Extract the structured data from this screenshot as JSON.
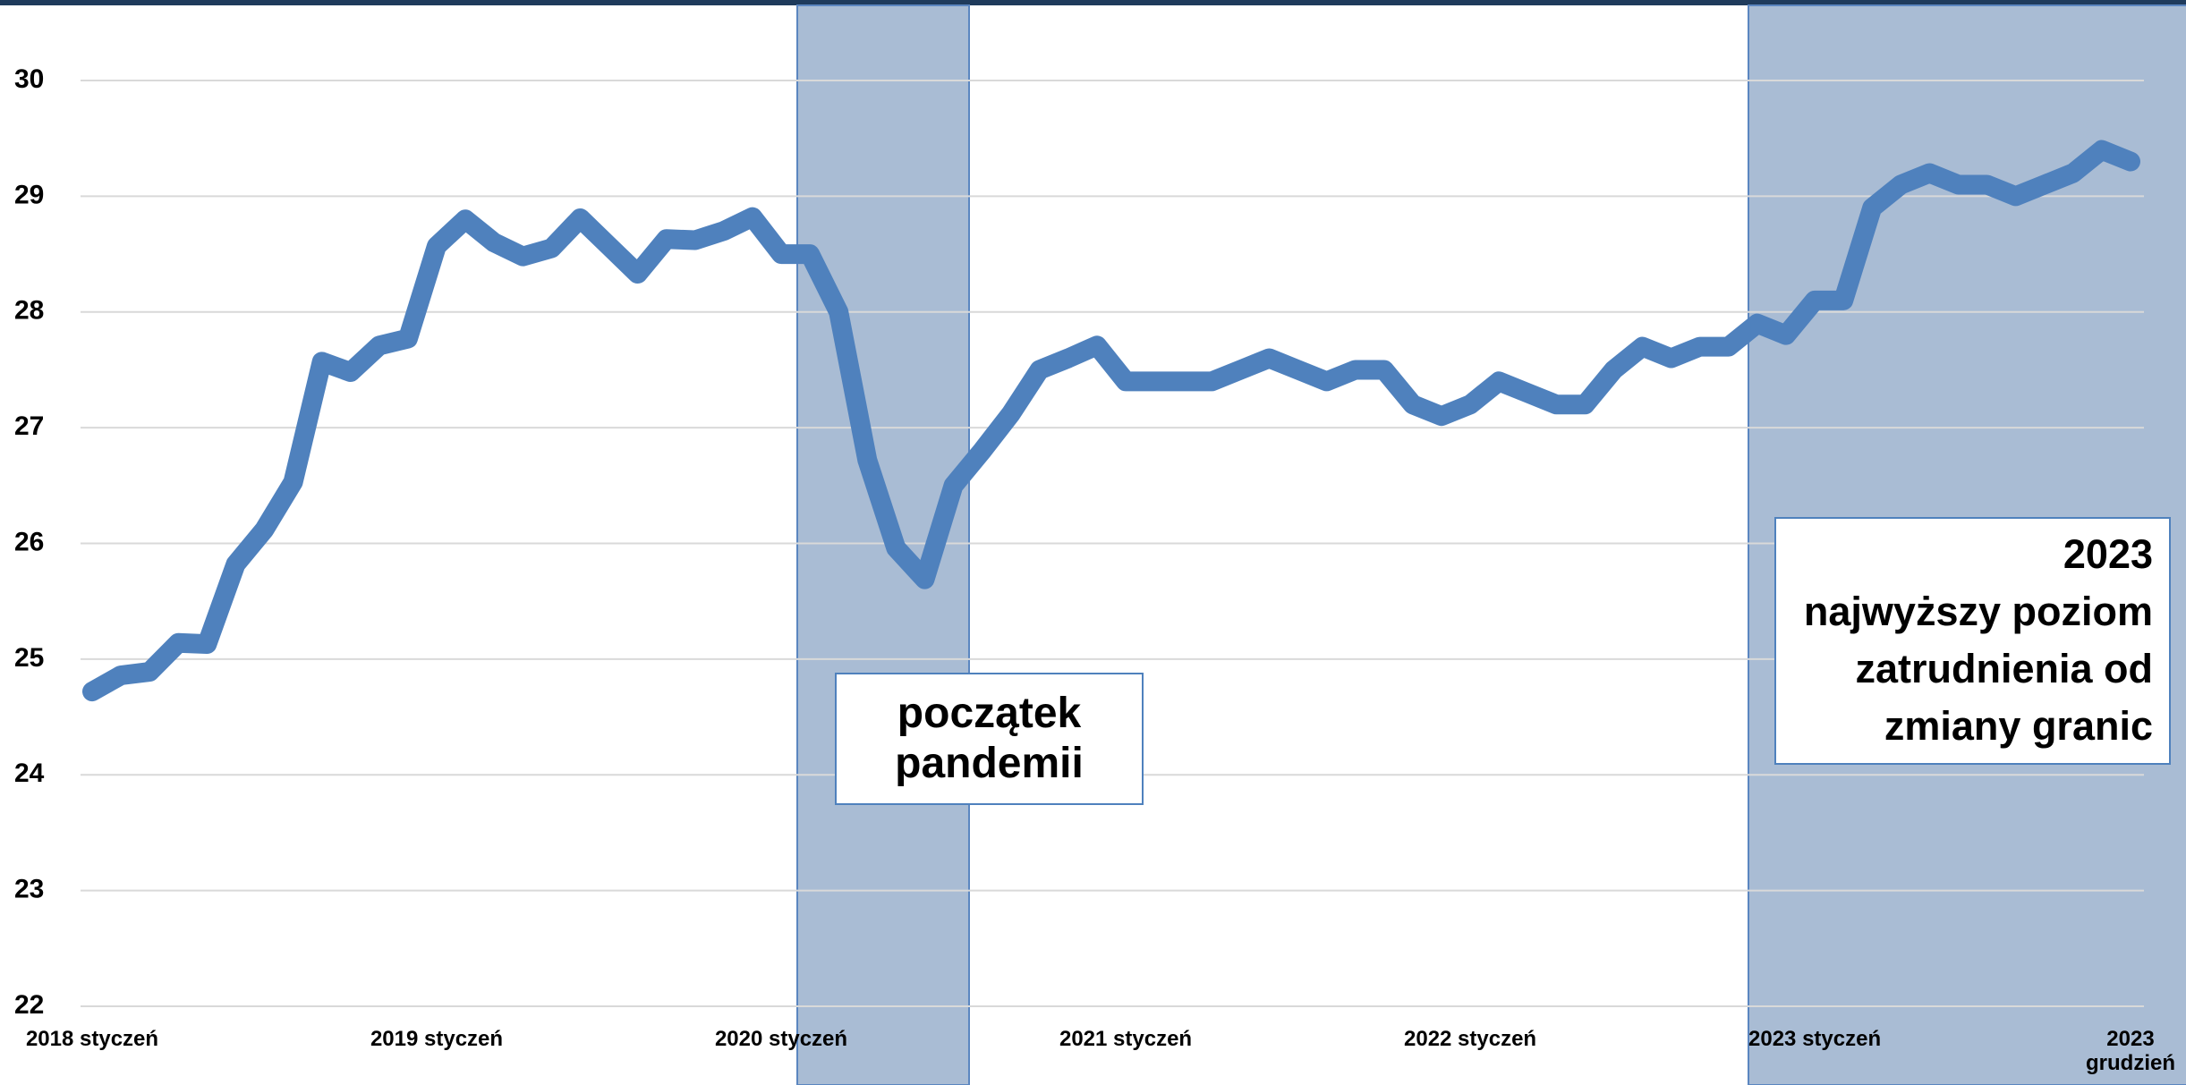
{
  "chart_data": {
    "type": "line",
    "categories": [
      "2018 styczeń",
      null,
      null,
      null,
      null,
      null,
      null,
      null,
      null,
      null,
      null,
      null,
      "2019 styczeń",
      null,
      null,
      null,
      null,
      null,
      null,
      null,
      null,
      null,
      null,
      null,
      "2020 styczeń",
      null,
      null,
      null,
      null,
      null,
      null,
      null,
      null,
      null,
      null,
      null,
      "2021 styczeń",
      null,
      null,
      null,
      null,
      null,
      null,
      null,
      null,
      null,
      null,
      null,
      "2022 styczeń",
      null,
      null,
      null,
      null,
      null,
      null,
      null,
      null,
      null,
      null,
      null,
      "2023 styczeń",
      null,
      null,
      null,
      null,
      null,
      null,
      null,
      null,
      null,
      null,
      "2023\ngrudzień"
    ],
    "series": [
      {
        "color": "#4f81bd",
        "values": [
          24.72,
          24.86,
          24.89,
          25.14,
          25.13,
          25.82,
          26.12,
          26.53,
          27.57,
          27.48,
          27.71,
          27.77,
          28.57,
          28.8,
          28.6,
          28.48,
          28.55,
          28.81,
          28.57,
          28.33,
          28.63,
          28.62,
          28.7,
          28.82,
          28.5,
          28.5,
          28.0,
          26.72,
          25.96,
          25.69,
          26.5,
          26.8,
          27.12,
          27.5,
          27.6,
          27.71,
          27.4,
          27.4,
          27.4,
          27.4,
          27.5,
          27.6,
          27.5,
          27.4,
          27.5,
          27.5,
          27.2,
          27.1,
          27.2,
          27.4,
          27.3,
          27.2,
          27.2,
          27.5,
          27.7,
          27.6,
          27.7,
          27.7,
          27.9,
          27.8,
          28.1,
          28.1,
          28.9,
          29.1,
          29.2,
          29.1,
          29.1,
          29.0,
          29.1,
          29.2,
          29.4,
          29.3
        ]
      }
    ],
    "ylim": [
      22,
      30
    ],
    "yticks": [
      22,
      23,
      24,
      25,
      26,
      27,
      28,
      29,
      30
    ],
    "grid": true,
    "annotations": [
      "początek\npandemii",
      "2023\nnajwyższy poziom\nzatrudnienia od\nzmiany granic"
    ]
  }
}
